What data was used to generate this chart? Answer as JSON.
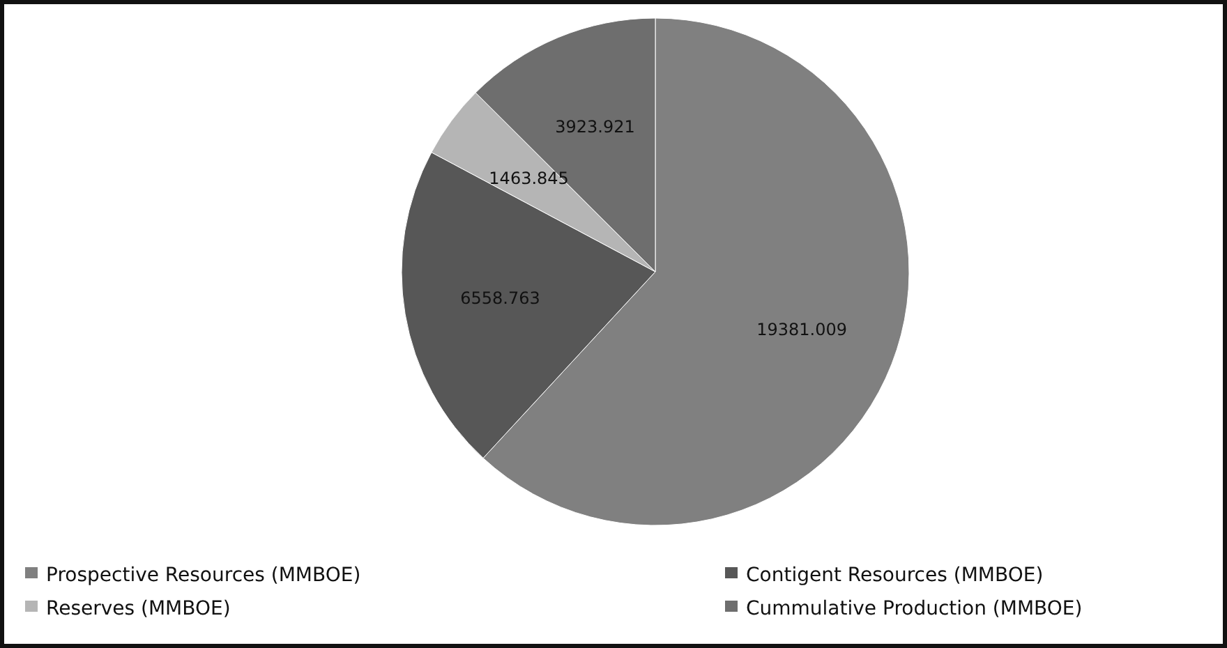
{
  "chart_data": {
    "type": "pie",
    "categories": [
      "Prospective Resources (MMBOE)",
      "Contigent Resources (MMBOE)",
      "Reserves (MMBOE)",
      "Cummulative Production (MMBOE)"
    ],
    "values": [
      19381.009,
      6558.763,
      1463.845,
      3923.921
    ],
    "colors": [
      "#808080",
      "#575757",
      "#b5b5b5",
      "#6e6e6e"
    ],
    "data_labels": true,
    "legend": "bottom"
  }
}
